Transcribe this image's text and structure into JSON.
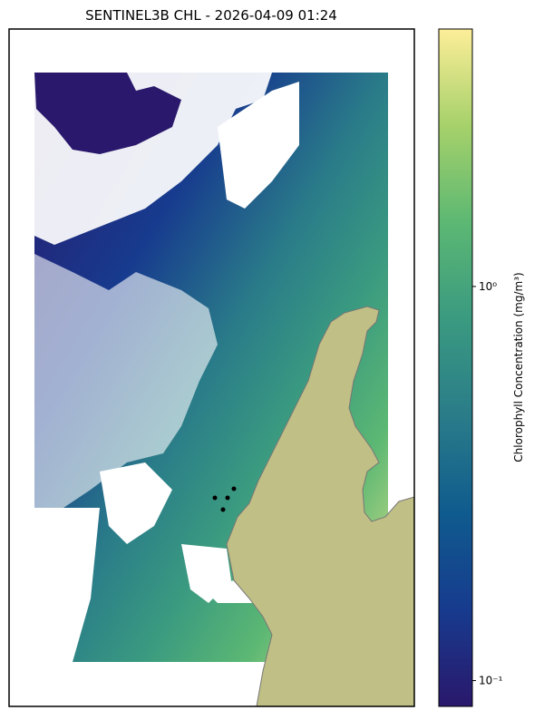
{
  "map": {
    "title": "SENTINEL3B CHL - 2026-04-09 01:24",
    "colorbar": {
      "label": "Chlorophyll Concentration (mg/m³)",
      "scale": "log",
      "lim": [
        0.086,
        4.5
      ],
      "ticks": [
        {
          "value": 0.1,
          "label": "10⁻¹"
        },
        {
          "value": 1,
          "label": "10⁰"
        }
      ],
      "colors": [
        "#2a186c",
        "#173b8e",
        "#0f5b8e",
        "#2a7c89",
        "#3a9a80",
        "#5cb873",
        "#a6d16a",
        "#fdee99"
      ]
    }
  }
}
